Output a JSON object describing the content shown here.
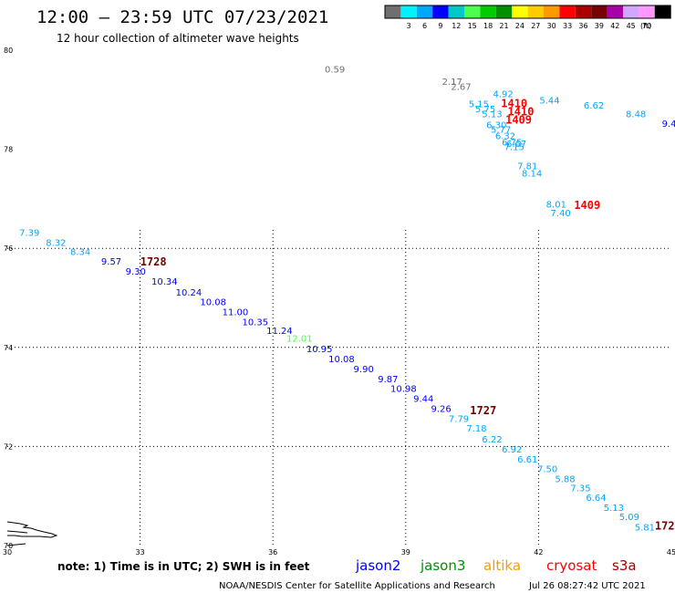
{
  "header": {
    "title": "12:00 – 23:59 UTC 07/23/2021",
    "subtitle": "12 hour collection of altimeter wave heights"
  },
  "colorbar": {
    "colors": [
      "#6f6f6f",
      "#00f2ff",
      "#00a7ff",
      "#0000ff",
      "#00c8c8",
      "#4cff4c",
      "#00cc00",
      "#009000",
      "#ffff00",
      "#ffcc00",
      "#ff9900",
      "#ff0000",
      "#aa0000",
      "#780000",
      "#aa00aa",
      "#d0a6ff",
      "#ff99ff",
      "#000000"
    ],
    "labels": [
      "3",
      "6",
      "9",
      "12",
      "15",
      "18",
      "21",
      "24",
      "27",
      "30",
      "33",
      "36",
      "39",
      "42",
      "45",
      "70"
    ],
    "unit": "(ft)"
  },
  "axes": {
    "lat_labels": [
      "80",
      "78",
      "76",
      "74",
      "72",
      "70"
    ],
    "lon_labels": [
      "30",
      "33",
      "36",
      "39",
      "42",
      "45"
    ]
  },
  "observations": [
    {
      "t": "0.59",
      "lon": 37.4,
      "lat": 79.55,
      "c": "#6f6f6f"
    },
    {
      "t": "2.17",
      "lon": 40.05,
      "lat": 79.3,
      "c": "#6f6f6f"
    },
    {
      "t": "2.67",
      "lon": 40.25,
      "lat": 79.2,
      "c": "#6f6f6f"
    },
    {
      "t": "4.92",
      "lon": 41.2,
      "lat": 79.05,
      "c": "#00a7ff"
    },
    {
      "t": "5.15",
      "lon": 40.65,
      "lat": 78.85,
      "c": "#00a7ff"
    },
    {
      "t": "5.75",
      "lon": 40.8,
      "lat": 78.75,
      "c": "#00a7ff"
    },
    {
      "t": "5.13",
      "lon": 40.95,
      "lat": 78.65,
      "c": "#00a7ff"
    },
    {
      "t": "5.44",
      "lon": 42.25,
      "lat": 78.92,
      "c": "#00a7ff"
    },
    {
      "t": "6.62",
      "lon": 43.25,
      "lat": 78.82,
      "c": "#00a7ff"
    },
    {
      "t": "8.48",
      "lon": 44.2,
      "lat": 78.65,
      "c": "#00a7ff"
    },
    {
      "t": "9.4",
      "lon": 44.95,
      "lat": 78.45,
      "c": "#0000ff"
    },
    {
      "t": "6.30",
      "lon": 41.05,
      "lat": 78.43,
      "c": "#00a7ff"
    },
    {
      "t": "5.77",
      "lon": 41.15,
      "lat": 78.33,
      "c": "#00a7ff"
    },
    {
      "t": "6.32",
      "lon": 41.25,
      "lat": 78.2,
      "c": "#00a7ff"
    },
    {
      "t": "6.75",
      "lon": 41.4,
      "lat": 78.08,
      "c": "#00a7ff"
    },
    {
      "t": "6.67",
      "lon": 41.5,
      "lat": 78.05,
      "c": "#00a7ff"
    },
    {
      "t": "7.15",
      "lon": 41.45,
      "lat": 77.98,
      "c": "#00a7ff"
    },
    {
      "t": "7.81",
      "lon": 41.75,
      "lat": 77.6,
      "c": "#00a7ff"
    },
    {
      "t": "8.14",
      "lon": 41.85,
      "lat": 77.45,
      "c": "#00a7ff"
    },
    {
      "t": "8.01",
      "lon": 42.4,
      "lat": 76.82,
      "c": "#00a7ff"
    },
    {
      "t": "7.40",
      "lon": 42.5,
      "lat": 76.65,
      "c": "#00a7ff"
    },
    {
      "t": "7.39",
      "lon": 30.5,
      "lat": 76.25,
      "c": "#00a7ff"
    },
    {
      "t": "8.32",
      "lon": 31.1,
      "lat": 76.05,
      "c": "#00a7ff"
    },
    {
      "t": "8.34",
      "lon": 31.65,
      "lat": 75.87,
      "c": "#00a7ff"
    },
    {
      "t": "9.57",
      "lon": 32.35,
      "lat": 75.67,
      "c": "#0000ff"
    },
    {
      "t": "9.30",
      "lon": 32.9,
      "lat": 75.47,
      "c": "#0000ff"
    },
    {
      "t": "10.34",
      "lon": 33.55,
      "lat": 75.27,
      "c": "#0000ff"
    },
    {
      "t": "10.24",
      "lon": 34.1,
      "lat": 75.05,
      "c": "#0000ff"
    },
    {
      "t": "10.08",
      "lon": 34.65,
      "lat": 74.85,
      "c": "#0000ff"
    },
    {
      "t": "11.00",
      "lon": 35.15,
      "lat": 74.65,
      "c": "#0000ff"
    },
    {
      "t": "10.35",
      "lon": 35.6,
      "lat": 74.45,
      "c": "#0000ff"
    },
    {
      "t": "11.24",
      "lon": 36.15,
      "lat": 74.27,
      "c": "#0000ff"
    },
    {
      "t": "12.01",
      "lon": 36.6,
      "lat": 74.12,
      "c": "#4cff4c"
    },
    {
      "t": "10.95",
      "lon": 37.05,
      "lat": 73.9,
      "c": "#0000ff"
    },
    {
      "t": "10.08",
      "lon": 37.55,
      "lat": 73.7,
      "c": "#0000ff"
    },
    {
      "t": "9.90",
      "lon": 38.05,
      "lat": 73.5,
      "c": "#0000ff"
    },
    {
      "t": "9.87",
      "lon": 38.6,
      "lat": 73.3,
      "c": "#0000ff"
    },
    {
      "t": "10.98",
      "lon": 38.95,
      "lat": 73.1,
      "c": "#0000ff"
    },
    {
      "t": "9.44",
      "lon": 39.4,
      "lat": 72.9,
      "c": "#0000ff"
    },
    {
      "t": "9.26",
      "lon": 39.8,
      "lat": 72.7,
      "c": "#0000ff"
    },
    {
      "t": "7.79",
      "lon": 40.2,
      "lat": 72.5,
      "c": "#00a7ff"
    },
    {
      "t": "7.18",
      "lon": 40.6,
      "lat": 72.3,
      "c": "#00a7ff"
    },
    {
      "t": "6.22",
      "lon": 40.95,
      "lat": 72.08,
      "c": "#00a7ff"
    },
    {
      "t": "6.92",
      "lon": 41.4,
      "lat": 71.88,
      "c": "#00a7ff"
    },
    {
      "t": "6.61",
      "lon": 41.75,
      "lat": 71.68,
      "c": "#00a7ff"
    },
    {
      "t": "7.50",
      "lon": 42.2,
      "lat": 71.48,
      "c": "#00a7ff"
    },
    {
      "t": "5.88",
      "lon": 42.6,
      "lat": 71.28,
      "c": "#00a7ff"
    },
    {
      "t": "7.35",
      "lon": 42.95,
      "lat": 71.1,
      "c": "#00a7ff"
    },
    {
      "t": "6.64",
      "lon": 43.3,
      "lat": 70.9,
      "c": "#00a7ff"
    },
    {
      "t": "5.13",
      "lon": 43.7,
      "lat": 70.7,
      "c": "#00a7ff"
    },
    {
      "t": "5.09",
      "lon": 44.05,
      "lat": 70.52,
      "c": "#00a7ff"
    },
    {
      "t": "5.81",
      "lon": 44.4,
      "lat": 70.3,
      "c": "#00a7ff"
    }
  ],
  "passes": [
    {
      "t": "1410",
      "lon": 41.45,
      "lat": 78.85,
      "c": "#ff0000"
    },
    {
      "t": "1410",
      "lon": 41.6,
      "lat": 78.68,
      "c": "#ff0000"
    },
    {
      "t": "1409",
      "lon": 41.55,
      "lat": 78.52,
      "c": "#ff0000"
    },
    {
      "t": "1409",
      "lon": 43.1,
      "lat": 76.8,
      "c": "#ff0000"
    },
    {
      "t": "1728",
      "lon": 33.3,
      "lat": 75.65,
      "c": "#780000"
    },
    {
      "t": "1727",
      "lon": 40.75,
      "lat": 72.65,
      "c": "#780000"
    },
    {
      "t": "172",
      "lon": 44.85,
      "lat": 70.32,
      "c": "#780000"
    }
  ],
  "note": "note:  1) Time is in UTC;  2) SWH is in feet",
  "legend": [
    {
      "name": "jason2",
      "c": "#0000ff"
    },
    {
      "name": "jason3",
      "c": "#009000"
    },
    {
      "name": "altika",
      "c": "#ff9900"
    },
    {
      "name": "cryosat",
      "c": "#ff0000"
    },
    {
      "name": "s3a",
      "c": "#aa0000"
    }
  ],
  "footer": {
    "agency": "NOAA/NESDIS Center for Satellite Applications and Research",
    "timestamp": "Jul 26 08:27:42 UTC 2021"
  }
}
